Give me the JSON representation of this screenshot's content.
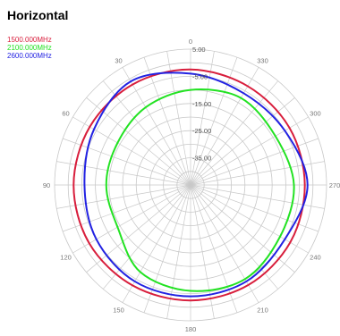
{
  "chart_data": {
    "type": "polar",
    "title": "Horizontal",
    "radial_axis": {
      "min": -45,
      "max": 5,
      "tick_labels": [
        "5.00",
        "-5.00",
        "-15.00",
        "-25.00",
        "-35.00"
      ],
      "tick_values": [
        5,
        -5,
        -15,
        -25,
        -35
      ]
    },
    "angular_axis": {
      "tick_labels": [
        "0",
        "30",
        "60",
        "90",
        "120",
        "150",
        "180",
        "210",
        "240",
        "270",
        "300",
        "330"
      ],
      "tick_values": [
        0,
        30,
        60,
        90,
        120,
        150,
        180,
        210,
        240,
        270,
        300,
        330
      ],
      "direction": "counterclockwise",
      "zero_at": "top"
    },
    "grid": true,
    "legend_placement": "top-left",
    "angles": [
      0,
      30,
      60,
      90,
      120,
      150,
      180,
      210,
      240,
      270,
      300,
      330
    ],
    "series": [
      {
        "name": "1500.000MHz",
        "color": "#d81e3c",
        "values": [
          -2.5,
          -2.3,
          -2.2,
          -2.0,
          -2.0,
          -2.3,
          -2.5,
          -2.5,
          -2.7,
          -3.0,
          -3.0,
          -3.0
        ]
      },
      {
        "name": "2100.000MHz",
        "color": "#22e222",
        "values": [
          -10,
          -12,
          -14,
          -14,
          -14,
          -8,
          -6,
          -5,
          -7,
          -7,
          -9,
          -8
        ]
      },
      {
        "name": "2600.000MHz",
        "color": "#2222e2",
        "values": [
          -4,
          -1,
          -4,
          -6,
          -5,
          -4,
          -4,
          -4,
          -5,
          -2,
          -5,
          -6
        ]
      }
    ]
  }
}
